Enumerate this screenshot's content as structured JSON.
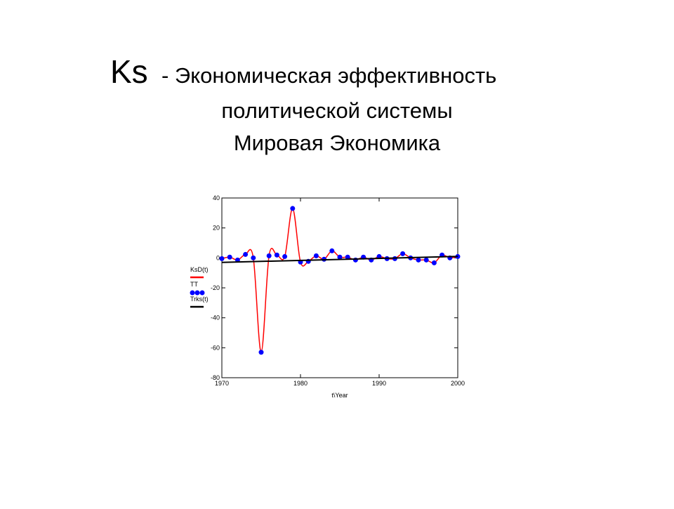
{
  "chart_data": {
    "type": "line",
    "title": [
      "Ks",
      "- Экономическая эффективность",
      "политической системы",
      "Мировая Экономика"
    ],
    "xlabel": "t\\Year",
    "xlim": [
      1970,
      2000
    ],
    "xticks": [
      1970,
      1980,
      1990,
      2000
    ],
    "ylim": [
      -80,
      40
    ],
    "yticks": [
      40,
      20,
      0,
      -20,
      -40,
      -60,
      -80
    ],
    "legend": "left",
    "series": [
      {
        "name": "KsD(t)",
        "color": "#ff0000",
        "style": "spline",
        "x": [
          1970,
          1971,
          1972,
          1973,
          1974,
          1975,
          1976,
          1977,
          1978,
          1979,
          1980,
          1981,
          1982,
          1983,
          1984,
          1985,
          1986,
          1987,
          1988,
          1989,
          1990,
          1991,
          1992,
          1993,
          1994,
          1995,
          1996,
          1997,
          1998,
          1999,
          2000
        ],
        "values": [
          -0.5,
          0.5,
          -1.4,
          2.3,
          0,
          -63,
          1.4,
          1.9,
          0.9,
          33,
          -2.8,
          -2.3,
          1.4,
          -0.9,
          4.7,
          0.5,
          0.5,
          -1.4,
          0.5,
          -1.4,
          0.9,
          -0.5,
          -0.5,
          2.8,
          0,
          -1.4,
          -1.4,
          -3.3,
          1.9,
          0,
          0.9
        ]
      },
      {
        "name": "TT",
        "color": "#0000ff",
        "style": "dots",
        "x": [
          1970,
          1971,
          1972,
          1973,
          1974,
          1975,
          1976,
          1977,
          1978,
          1979,
          1980,
          1981,
          1982,
          1983,
          1984,
          1985,
          1986,
          1987,
          1988,
          1989,
          1990,
          1991,
          1992,
          1993,
          1994,
          1995,
          1996,
          1997,
          1998,
          1999,
          2000
        ],
        "values": [
          -0.5,
          0.5,
          -1.4,
          2.3,
          0,
          -63,
          1.4,
          1.9,
          0.9,
          33,
          -2.8,
          -2.3,
          1.4,
          -0.9,
          4.7,
          0.5,
          0.5,
          -1.4,
          0.5,
          -1.4,
          0.9,
          -0.5,
          -0.5,
          2.8,
          0,
          -1.4,
          -1.4,
          -3.3,
          1.9,
          0,
          0.9
        ]
      },
      {
        "name": "Trks(t)",
        "color": "#000000",
        "style": "line",
        "x": [
          1970,
          2000
        ],
        "values": [
          -3,
          1
        ]
      }
    ]
  }
}
